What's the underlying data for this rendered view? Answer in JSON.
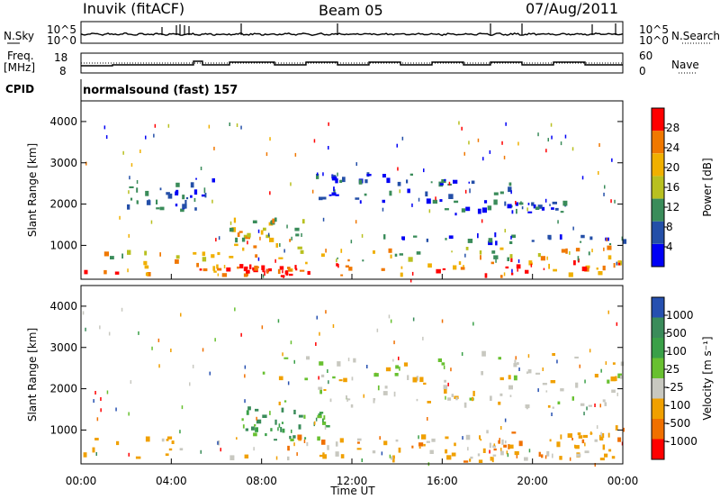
{
  "header": {
    "station": "Inuvik (fitACF)",
    "beam": "Beam 05",
    "date": "07/Aug/2011"
  },
  "panels": {
    "nsky_label": "N.Sky",
    "nsearch_label": "N.Search",
    "freq_label_line1": "Freq.",
    "freq_label_line2": "[MHz]",
    "nave_label": "Nave",
    "cpid_label": "CPID",
    "cpid_value": "normalsound (fast) 157",
    "noise_left_ticks": [
      "10^5",
      "10^0"
    ],
    "noise_right_ticks": [
      "10^5",
      "10^0"
    ],
    "freq_left_ticks": [
      "18",
      "8"
    ],
    "nave_right_ticks": [
      "60",
      "0"
    ]
  },
  "chart_data": [
    {
      "type": "heatmap",
      "xlabel": "Time UT",
      "ylabel": "Slant Range [km]",
      "x_tick_labels": [
        "00:00",
        "04:00",
        "08:00",
        "12:00",
        "16:00",
        "20:00",
        "00:00"
      ],
      "xlim_hours": [
        0,
        24
      ],
      "ylim_km": [
        180,
        4500
      ],
      "y_ticks": [
        1000,
        2000,
        3000,
        4000
      ],
      "colorbar": {
        "label": "Power [dB]",
        "ticks": [
          4,
          8,
          12,
          16,
          20,
          24,
          28
        ],
        "colors": [
          "#0000f5",
          "#244fa8",
          "#3a8c5a",
          "#b8c020",
          "#f0b000",
          "#f07800",
          "#ff0000"
        ]
      },
      "echo_bands": [
        {
          "t0": 0.0,
          "t1": 24.0,
          "r0": 200,
          "r1": 600,
          "level": "high"
        },
        {
          "t0": 6.0,
          "t1": 9.5,
          "r0": 200,
          "r1": 450,
          "level": "peak"
        },
        {
          "t0": 0.0,
          "t1": 24.0,
          "r0": 600,
          "r1": 900,
          "level": "medium"
        },
        {
          "t0": 6.5,
          "t1": 10.0,
          "r0": 900,
          "r1": 1600,
          "level": "medium"
        },
        {
          "t0": 13.0,
          "t1": 24.0,
          "r0": 1000,
          "r1": 1200,
          "level": "low"
        },
        {
          "t0": 10.0,
          "t1": 19.0,
          "r0": 2000,
          "r1": 2700,
          "level": "low"
        },
        {
          "t0": 16.0,
          "t1": 22.0,
          "r0": 1700,
          "r1": 2000,
          "level": "low"
        },
        {
          "t0": 2.0,
          "t1": 6.0,
          "r0": 1800,
          "r1": 2600,
          "level": "low"
        }
      ]
    },
    {
      "type": "heatmap",
      "xlabel": "Time UT",
      "ylabel": "Slant Range [km]",
      "x_tick_labels": [
        "00:00",
        "04:00",
        "08:00",
        "12:00",
        "16:00",
        "20:00",
        "00:00"
      ],
      "xlim_hours": [
        0,
        24
      ],
      "ylim_km": [
        180,
        4500
      ],
      "y_ticks": [
        1000,
        2000,
        3000,
        4000
      ],
      "colorbar": {
        "label": "Velocity [m s⁻¹]",
        "ticks": [
          1000,
          500,
          100,
          25,
          -25,
          -100,
          -500,
          -1000
        ],
        "colors": [
          "#2650b0",
          "#3a8c5a",
          "#3aa048",
          "#68c030",
          "#c8c8c0",
          "#f0a000",
          "#f07000",
          "#ff0000"
        ]
      },
      "echo_bands": [
        {
          "t0": 0.0,
          "t1": 24.0,
          "r0": 200,
          "r1": 800,
          "level": "away"
        },
        {
          "t0": 7.0,
          "t1": 11.0,
          "r0": 700,
          "r1": 1500,
          "level": "toward"
        },
        {
          "t0": 8.0,
          "t1": 24.0,
          "r0": 1500,
          "r1": 2800,
          "level": "near-zero"
        },
        {
          "t0": 17.0,
          "t1": 24.0,
          "r0": 300,
          "r1": 1000,
          "level": "away"
        }
      ]
    }
  ]
}
